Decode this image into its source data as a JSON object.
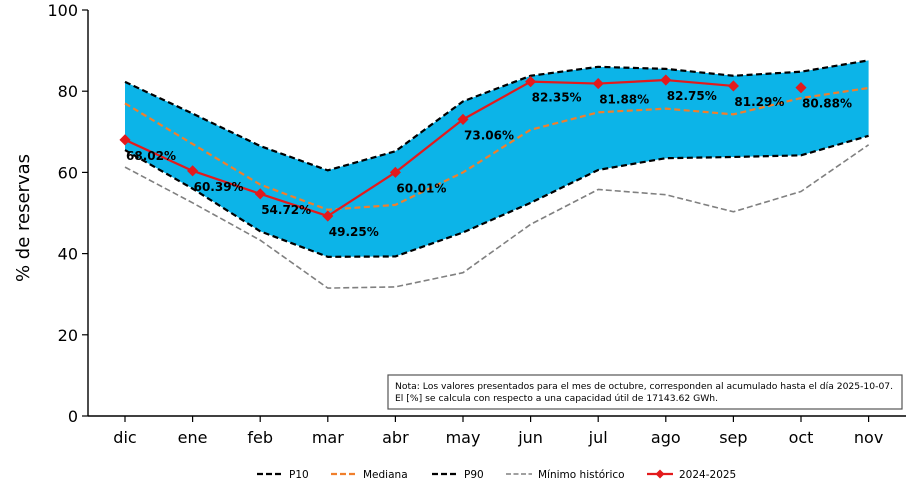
{
  "chart_data": {
    "type": "line",
    "categories": [
      "dic",
      "ene",
      "feb",
      "mar",
      "abr",
      "may",
      "jun",
      "jul",
      "ago",
      "sep",
      "oct",
      "nov"
    ],
    "ylabel": "% de  reservas",
    "ylim": [
      0,
      100
    ],
    "yticks": [
      0,
      20,
      40,
      60,
      80,
      100
    ],
    "grid": false,
    "legend_position": "bottom",
    "band": {
      "lower_series": "P10",
      "upper_series": "P90",
      "color": "#0cb4e8"
    },
    "series": [
      {
        "name": "P10",
        "style": "dashed",
        "color": "#000000",
        "values": [
          65.5,
          56.0,
          45.5,
          39.2,
          39.3,
          45.2,
          52.5,
          60.6,
          63.5,
          63.8,
          64.2,
          69.0
        ]
      },
      {
        "name": "Mediana",
        "style": "dashed",
        "color": "#f07f2c",
        "values": [
          77.0,
          67.0,
          57.0,
          50.8,
          52.0,
          60.0,
          70.5,
          74.8,
          75.7,
          74.3,
          78.3,
          80.8
        ]
      },
      {
        "name": "P90",
        "style": "dashed",
        "color": "#000000",
        "values": [
          82.3,
          74.5,
          66.5,
          60.5,
          65.2,
          77.5,
          83.8,
          86.0,
          85.5,
          83.8,
          84.8,
          87.6
        ]
      },
      {
        "name": "Mínimo histórico",
        "style": "dashed",
        "color": "#808080",
        "values": [
          61.3,
          52.5,
          43.3,
          31.5,
          31.8,
          35.3,
          47.2,
          55.8,
          54.5,
          50.3,
          55.3,
          66.8
        ]
      },
      {
        "name": "2024-2025",
        "style": "solid",
        "color": "#e31a1c",
        "marker": "diamond",
        "values": [
          68.02,
          60.39,
          54.72,
          49.25,
          60.01,
          73.06,
          82.35,
          81.88,
          82.75,
          81.29,
          80.88,
          null
        ],
        "labels": [
          "68.02%",
          "60.39%",
          "54.72%",
          "49.25%",
          "60.01%",
          "73.06%",
          "82.35%",
          "81.88%",
          "82.75%",
          "81.29%",
          "80.88%",
          ""
        ]
      }
    ],
    "note": {
      "line1": "Nota: Los valores presentados para el mes de octubre, corresponden al acumulado hasta el día 2025-10-07.",
      "line2": "El [%] se calcula con respecto a una capacidad útil de 17143.62 GWh."
    }
  }
}
